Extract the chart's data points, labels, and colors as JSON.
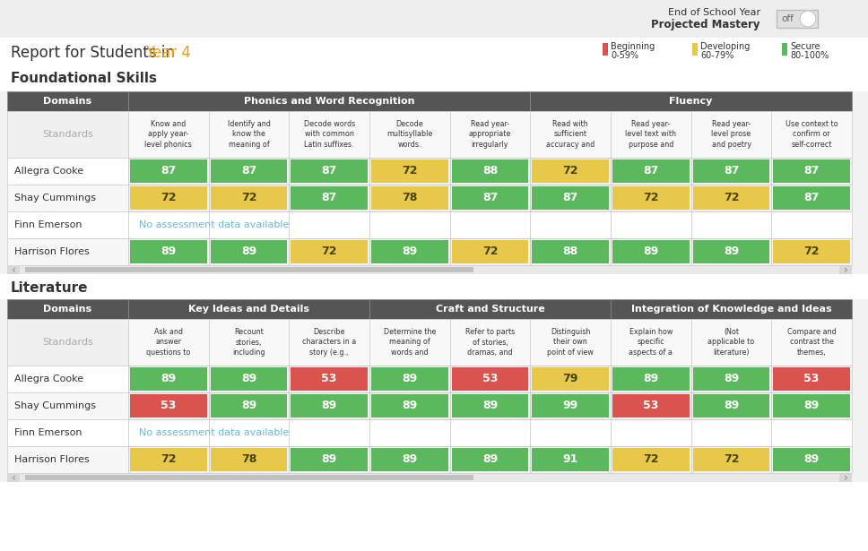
{
  "bg_color": "#f2f2f2",
  "white": "#ffffff",
  "dark_header": "#555555",
  "header_text": "#ffffff",
  "green": "#5cb85c",
  "yellow": "#e8c84a",
  "red": "#d9534f",
  "title_year_color": "#e8a020",
  "no_data_color": "#6bb8d8",
  "standards_color": "#aaaaaa",
  "cell_border": "#cccccc",
  "top_header_text": "End of School Year",
  "top_subheader_text": "Projected Mastery",
  "toggle_text": "off",
  "report_title_prefix": "Report for Students in ",
  "report_title_year": "Year 4",
  "legend_items": [
    {
      "label1": "Beginning",
      "label2": "0-59%",
      "color": "#d9534f"
    },
    {
      "label1": "Developing",
      "label2": "60-79%",
      "color": "#e8c84a"
    },
    {
      "label1": "Secure",
      "label2": "80-100%",
      "color": "#5cb85c"
    }
  ],
  "section1_title": "Foundational Skills",
  "section1_domains": [
    {
      "name": "Phonics and Word Recognition",
      "span": 5
    },
    {
      "name": "Fluency",
      "span": 4
    }
  ],
  "section1_standards": [
    "Know and\napply year-\nlevel phonics",
    "Identify and\nknow the\nmeaning of",
    "Decode words\nwith common\nLatin suffixes.",
    "Decode\nmultisyllable\nwords.",
    "Read year-\nappropriate\nirregularly",
    "Read with\nsufficient\naccuracy and",
    "Read year-\nlevel text with\npurpose and",
    "Read year-\nlevel prose\nand poetry",
    "Use context to\nconfirm or\nself-correct"
  ],
  "section1_students": [
    {
      "name": "Allegra Cooke",
      "scores": [
        87,
        87,
        87,
        72,
        88,
        72,
        87,
        87,
        87
      ]
    },
    {
      "name": "Shay Cummings",
      "scores": [
        72,
        72,
        87,
        78,
        87,
        87,
        72,
        72,
        87
      ]
    },
    {
      "name": "Finn Emerson",
      "scores": null
    },
    {
      "name": "Harrison Flores",
      "scores": [
        89,
        89,
        72,
        89,
        72,
        88,
        89,
        89,
        72
      ]
    }
  ],
  "section2_title": "Literature",
  "section2_domains": [
    {
      "name": "Key Ideas and Details",
      "span": 3
    },
    {
      "name": "Craft and Structure",
      "span": 3
    },
    {
      "name": "Integration of Knowledge and Ideas",
      "span": 3
    }
  ],
  "section2_standards": [
    "Ask and\nanswer\nquestions to",
    "Recount\nstories,\nincluding",
    "Describe\ncharacters in a\nstory (e.g.,",
    "Determine the\nmeaning of\nwords and",
    "Refer to parts\nof stories,\ndramas, and",
    "Distinguish\ntheir own\npoint of view",
    "Explain how\nspecific\naspects of a",
    "(Not\napplicable to\nliterature)",
    "Compare and\ncontrast the\nthemes,"
  ],
  "section2_students": [
    {
      "name": "Allegra Cooke",
      "scores": [
        89,
        89,
        53,
        89,
        53,
        79,
        89,
        89,
        53
      ]
    },
    {
      "name": "Shay Cummings",
      "scores": [
        53,
        89,
        89,
        89,
        89,
        99,
        53,
        89,
        89
      ]
    },
    {
      "name": "Finn Emerson",
      "scores": null
    },
    {
      "name": "Harrison Flores",
      "scores": [
        72,
        78,
        89,
        89,
        89,
        91,
        72,
        72,
        89
      ]
    }
  ]
}
